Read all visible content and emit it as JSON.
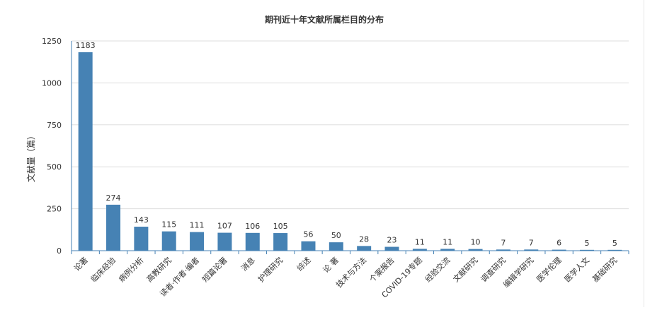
{
  "chart_data": {
    "type": "bar",
    "title": "期刊近十年文献所属栏目的分布",
    "xlabel": "",
    "ylabel": "文献量（篇）",
    "ylim": [
      0,
      1250
    ],
    "yticks": [
      0,
      250,
      500,
      750,
      1000,
      1250
    ],
    "grid": true,
    "legend": "none",
    "categories": [
      "论著",
      "临床经验",
      "病例分析",
      "高教研究",
      "读者·作者·编者",
      "短篇论著",
      "消息",
      "护理研究",
      "综述",
      "论 著",
      "技术与方法",
      "个案报告",
      "COVID-19专题",
      "经验交流",
      "文献研究",
      "调查研究",
      "编辑学研究",
      "医学伦理",
      "医学人文",
      "基础研究"
    ],
    "values": [
      1183,
      274,
      143,
      115,
      111,
      107,
      106,
      105,
      56,
      50,
      28,
      23,
      11,
      11,
      10,
      7,
      7,
      6,
      5,
      5
    ],
    "colors": {
      "bar": "#4682b4",
      "grid": "#dddddd",
      "axis": "#4682b4",
      "text": "#333333"
    }
  }
}
